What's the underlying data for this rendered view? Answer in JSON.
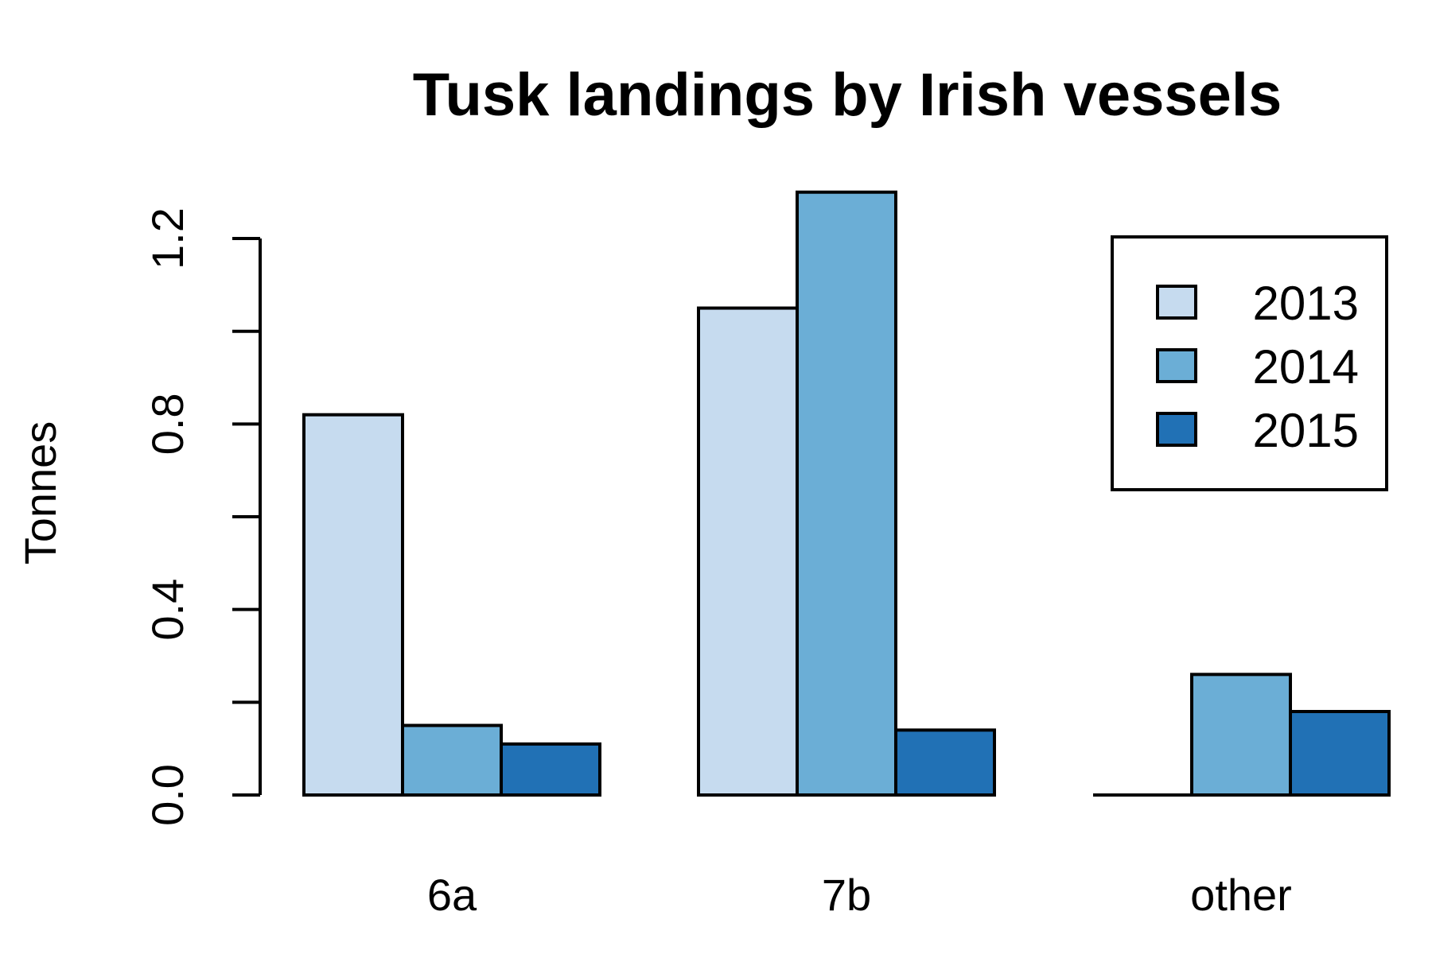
{
  "chart_data": {
    "type": "bar",
    "title": "Tusk landings by Irish vessels",
    "xlabel": "",
    "ylabel": "Tonnes",
    "categories": [
      "6a",
      "7b",
      "other"
    ],
    "series": [
      {
        "name": "2013",
        "values": [
          0.82,
          1.05,
          0.0
        ]
      },
      {
        "name": "2014",
        "values": [
          0.15,
          1.3,
          0.26
        ]
      },
      {
        "name": "2015",
        "values": [
          0.11,
          0.14,
          0.18
        ]
      }
    ],
    "ylim": [
      0,
      1.2
    ],
    "yticks": [
      0.0,
      0.2,
      0.4,
      0.6,
      0.8,
      1.0,
      1.2
    ],
    "ytick_labels": [
      "0.0",
      "",
      "0.4",
      "",
      "0.8",
      "",
      "1.2"
    ],
    "legend_position": "top-right",
    "grid": false,
    "colors": [
      "#c6dbef",
      "#6baed6",
      "#2171b5"
    ]
  }
}
